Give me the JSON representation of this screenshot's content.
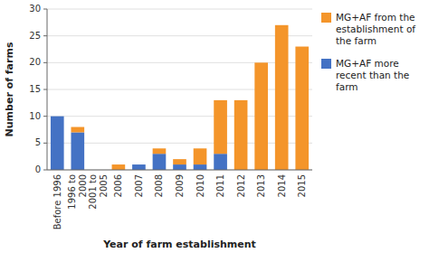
{
  "chart_data": {
    "type": "bar",
    "stacked": true,
    "categories": [
      "Before 1996",
      "1996 to\n2000",
      "2001 to\n2005",
      "2006",
      "2007",
      "2008",
      "2009",
      "2010",
      "2011",
      "2012",
      "2013",
      "2014",
      "2015"
    ],
    "series": [
      {
        "name": "MG+AF more\nrecent than the\nfarm",
        "color": "#4472c4",
        "values": [
          10,
          7,
          0,
          0,
          1,
          3,
          1,
          1,
          3,
          0,
          0,
          0,
          0
        ]
      },
      {
        "name": "MG+AF from the\nestablishment of\nthe farm",
        "color": "#f4952a",
        "values": [
          0,
          1,
          0,
          1,
          0,
          1,
          1,
          3,
          10,
          13,
          20,
          27,
          23
        ]
      }
    ],
    "xlabel": "Year of farm establishment",
    "ylabel": "Number of farms",
    "ylim": [
      0,
      30
    ],
    "yticks": [
      0,
      5,
      10,
      15,
      20,
      25,
      30
    ],
    "grid": true,
    "legend": "right"
  }
}
